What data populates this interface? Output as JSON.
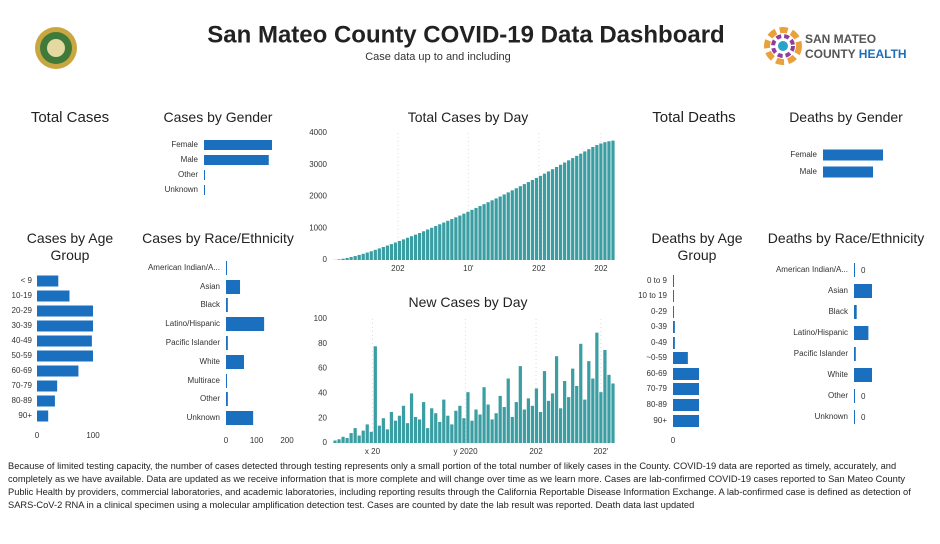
{
  "header": {
    "title": "San Mateo County COVID-19 Data Dashboard",
    "subtitle": "Case data up to and including",
    "logo_text": [
      "SAN MATEO",
      "COUNTY",
      "HEALTH"
    ]
  },
  "kpis": [
    "Total Cases",
    "Total Deaths"
  ],
  "chart_data": [
    {
      "type": "hbar",
      "title": "Cases by Gender",
      "categories": [
        "Female",
        "Male",
        "Other",
        "Unknown"
      ],
      "values": [
        1680,
        1600,
        2,
        15
      ],
      "color": "#1a6fbf"
    },
    {
      "type": "bar",
      "title": "Total Cases by Day",
      "color": "#3a9ea3",
      "ylim": [
        0,
        4000
      ],
      "yticks": [
        0,
        1000,
        2000,
        3000,
        4000
      ],
      "xlabels": [
        "202",
        "10'",
        "202",
        "202"
      ],
      "values": [
        5,
        20,
        40,
        65,
        95,
        125,
        160,
        195,
        235,
        275,
        320,
        365,
        410,
        455,
        500,
        550,
        600,
        650,
        700,
        750,
        800,
        850,
        905,
        960,
        1015,
        1070,
        1125,
        1180,
        1235,
        1290,
        1345,
        1400,
        1460,
        1520,
        1580,
        1640,
        1700,
        1760,
        1820,
        1880,
        1940,
        2000,
        2065,
        2130,
        2195,
        2260,
        2325,
        2390,
        2455,
        2520,
        2585,
        2650,
        2720,
        2790,
        2860,
        2930,
        3000,
        3070,
        3140,
        3210,
        3280,
        3350,
        3420,
        3490,
        3560,
        3620,
        3670,
        3710,
        3740,
        3760
      ]
    },
    {
      "type": "hbar",
      "title": "Cases by Age Group",
      "categories": [
        "< 9",
        "10-19",
        "20-29",
        "30-39",
        "40-49",
        "50-59",
        "60-69",
        "70-79",
        "80-89",
        "90+"
      ],
      "values": [
        38,
        58,
        100,
        100,
        98,
        100,
        74,
        36,
        32,
        20
      ],
      "color": "#1a6fbf",
      "xlim": [
        0,
        100
      ],
      "xticks": [
        0,
        100
      ]
    },
    {
      "type": "hbar",
      "title": "Cases by Race/Ethnicity",
      "categories": [
        "American Indian/A...",
        "Asian",
        "Black",
        "Latino/Hispanic",
        "Pacific Islander",
        "White",
        "Multirace",
        "Other",
        "Unknown"
      ],
      "values": [
        2,
        46,
        6,
        125,
        6,
        59,
        3,
        6,
        89
      ],
      "color": "#1a6fbf",
      "xlim": [
        0,
        200
      ],
      "xticks": [
        0,
        100,
        200
      ]
    },
    {
      "type": "bar",
      "title": "New Cases by Day",
      "color": "#3a9ea3",
      "ylim": [
        0,
        100
      ],
      "yticks": [
        0,
        20,
        40,
        60,
        80,
        100
      ],
      "xlabels": [
        "x 20",
        "y 2020",
        "202",
        "202'"
      ],
      "values": [
        2,
        3,
        5,
        4,
        8,
        12,
        6,
        10,
        15,
        9,
        78,
        14,
        20,
        11,
        25,
        18,
        22,
        30,
        16,
        40,
        21,
        19,
        33,
        12,
        28,
        24,
        17,
        35,
        22,
        15,
        26,
        30,
        20,
        41,
        18,
        27,
        23,
        45,
        31,
        19,
        24,
        38,
        29,
        52,
        21,
        33,
        62,
        27,
        36,
        30,
        44,
        25,
        58,
        34,
        40,
        70,
        28,
        50,
        37,
        60,
        46,
        80,
        35,
        66,
        52,
        89,
        41,
        75,
        55,
        48
      ]
    },
    {
      "type": "hbar",
      "title": "Deaths by Gender",
      "categories": [
        "Female",
        "Male"
      ],
      "values": [
        36,
        30
      ],
      "color": "#1a6fbf"
    },
    {
      "type": "hbar",
      "title": "Deaths by Age Group",
      "categories": [
        "0 to 9",
        "10 to 19",
        "0-29",
        "0-39",
        "0-49",
        "~0-59",
        "60-69",
        "70-79",
        "80-89",
        "90+"
      ],
      "values": [
        0,
        0,
        0,
        1,
        1,
        8,
        14,
        14,
        14,
        14
      ],
      "color": "#1a6fbf",
      "xlim": [
        0,
        28
      ],
      "xticks": [
        0
      ]
    },
    {
      "type": "hbar",
      "title": "Deaths by Race/Ethnicity",
      "categories": [
        "American Indian/A...",
        "Asian",
        "Black",
        "Latino/Hispanic",
        "Pacific Islander",
        "White",
        "Other",
        "Unknown"
      ],
      "values": [
        0,
        20,
        3,
        16,
        2,
        20,
        0,
        0
      ],
      "color": "#1a6fbf",
      "data_labels": true
    }
  ],
  "footer": "Because of limited testing capacity, the number of cases detected through testing represents only a small portion of the total number of likely cases in the County. COVID-19 data are reported as timely, accurately, and completely as we have available. Data are updated as we receive information that is more complete and will change over time as we learn more. Cases are lab-confirmed COVID-19 cases reported to San Mateo County Public Health by providers, commercial laboratories, and academic laboratories, including reporting results through the California Reportable Disease Information Exchange. A lab-confirmed case is defined as detection of SARS-CoV-2 RNA in a clinical specimen using a molecular amplification detection test. Cases are counted by date the lab result was reported.  Death data last updated"
}
